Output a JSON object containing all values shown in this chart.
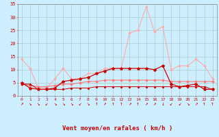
{
  "x": [
    0,
    1,
    2,
    3,
    4,
    5,
    6,
    7,
    8,
    9,
    10,
    11,
    12,
    13,
    14,
    15,
    16,
    17,
    18,
    19,
    20,
    21,
    22,
    23
  ],
  "series_rafales": [
    14,
    10.5,
    3.0,
    3.0,
    6.5,
    10.5,
    6.5,
    6.5,
    8.5,
    8.5,
    10.5,
    10.5,
    10.5,
    24.0,
    25.0,
    34.0,
    24.5,
    26.5,
    10.0,
    11.5,
    11.5,
    14.0,
    11.5,
    6.5
  ],
  "series_moyen": [
    5.0,
    3.0,
    2.5,
    2.5,
    3.0,
    5.5,
    6.0,
    6.5,
    7.0,
    8.5,
    9.5,
    10.5,
    10.5,
    10.5,
    10.5,
    10.5,
    10.0,
    11.5,
    4.5,
    3.5,
    4.0,
    4.5,
    2.5,
    2.5
  ],
  "series_line1": [
    4.5,
    4.0,
    3.5,
    3.5,
    4.0,
    4.5,
    4.5,
    5.0,
    5.5,
    5.5,
    6.0,
    6.0,
    6.0,
    6.0,
    6.0,
    6.0,
    6.0,
    6.0,
    5.5,
    5.5,
    5.5,
    5.5,
    5.5,
    5.5
  ],
  "series_flat": [
    4.5,
    4.5,
    2.5,
    2.5,
    2.5,
    2.5,
    3.0,
    3.0,
    3.0,
    3.5,
    3.5,
    3.5,
    3.5,
    3.5,
    3.5,
    3.5,
    3.5,
    3.5,
    3.5,
    3.5,
    3.5,
    3.5,
    3.5,
    2.5
  ],
  "color_rafales": "#ffaaaa",
  "color_moyen": "#cc0000",
  "color_line1": "#ff7777",
  "color_flat": "#cc0000",
  "bg_color": "#cceeff",
  "grid_color": "#aacccc",
  "axis_label_color": "#cc0000",
  "tick_color": "#cc0000",
  "xlabel": "Vent moyen/en rafales ( km/h )",
  "ylim": [
    0,
    35
  ],
  "yticks": [
    0,
    5,
    10,
    15,
    20,
    25,
    30,
    35
  ],
  "xlim": [
    -0.5,
    23.5
  ],
  "wind_dirs": [
    "↗",
    "↘",
    "↘",
    "↙",
    "↘",
    "↘",
    "↘",
    "↙",
    "↘",
    "↑",
    "↗",
    "↑",
    "↑",
    "↗",
    "↑",
    "↗",
    "↗",
    "↓",
    "↙",
    "↙",
    "↘",
    "↗",
    "↑",
    "↑"
  ]
}
